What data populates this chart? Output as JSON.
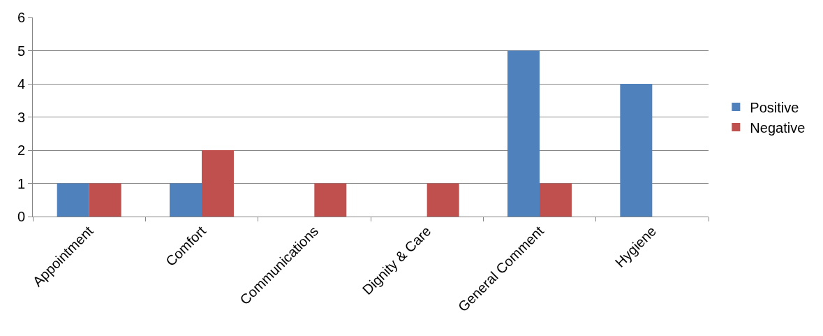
{
  "chart_data": {
    "type": "bar",
    "categories": [
      "Appointment",
      "Comfort",
      "Communications",
      "Dignity & Care",
      "General Comment",
      "Hygiene"
    ],
    "series": [
      {
        "name": "Positive",
        "color": "#4f81bd",
        "values": [
          1,
          1,
          0,
          0,
          5,
          4
        ]
      },
      {
        "name": "Negative",
        "color": "#c0504d",
        "values": [
          1,
          2,
          1,
          1,
          1,
          0
        ]
      }
    ],
    "ylim": [
      0,
      6
    ],
    "yticks": [
      0,
      1,
      2,
      3,
      4,
      5,
      6
    ],
    "grid": "y",
    "legend": "right"
  }
}
